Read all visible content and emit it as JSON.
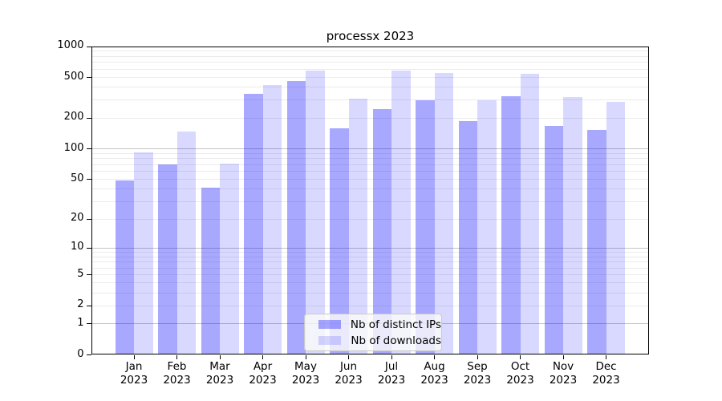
{
  "chart_data": {
    "type": "bar",
    "title": "processx 2023",
    "categories": [
      "Jan",
      "Feb",
      "Mar",
      "Apr",
      "May",
      "Jun",
      "Jul",
      "Aug",
      "Sep",
      "Oct",
      "Nov",
      "Dec"
    ],
    "year_label": "2023",
    "series": [
      {
        "name": "Nb of distinct IPs",
        "color": "rgba(0,0,255,0.34)",
        "values": [
          48,
          70,
          41,
          341,
          455,
          157,
          242,
          295,
          185,
          323,
          165,
          152
        ]
      },
      {
        "name": "Nb of downloads",
        "color": "rgba(0,0,255,0.15)",
        "values": [
          92,
          146,
          71,
          420,
          578,
          307,
          578,
          549,
          298,
          539,
          319,
          285
        ]
      }
    ],
    "y_axis": {
      "scale": "log1p",
      "tick_values": [
        0,
        1,
        2,
        5,
        10,
        20,
        50,
        100,
        200,
        500,
        1000
      ],
      "range": [
        0,
        1000
      ]
    },
    "grid": {
      "major_lines": [
        1,
        10,
        100,
        1000
      ],
      "minor_multipliers": [
        2,
        3,
        4,
        5,
        6,
        7,
        8,
        9
      ],
      "minor_decades": [
        1,
        10,
        100
      ],
      "major_color": "#c4c4c4",
      "minor_color": "#ebebeb"
    },
    "legend": {
      "position": "bottom-center",
      "entries": [
        "Nb of distinct IPs",
        "Nb of downloads"
      ]
    }
  }
}
